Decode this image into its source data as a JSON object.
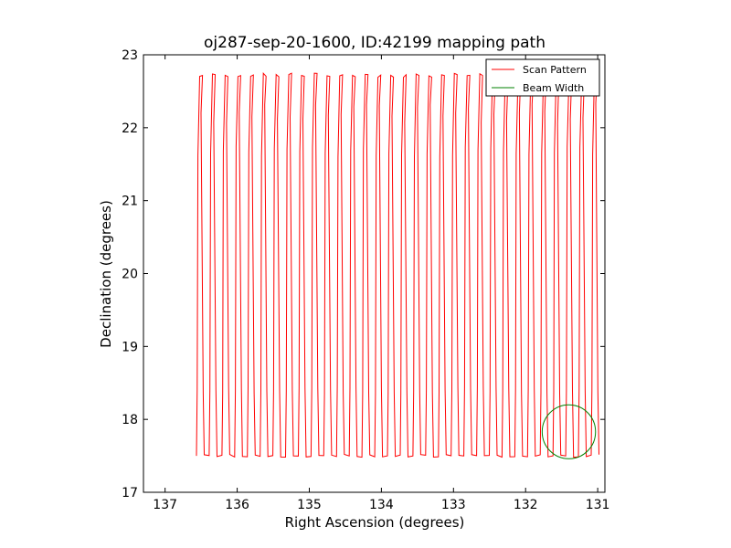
{
  "chart_data": {
    "type": "line",
    "title": "oj287-sep-20-1600, ID:42199 mapping path",
    "xlabel": "Right Ascension (degrees)",
    "ylabel": "Declination (degrees)",
    "xlim": [
      137.3,
      130.9
    ],
    "ylim": [
      17,
      23
    ],
    "x_inverted": true,
    "xticks": [
      137,
      136,
      135,
      134,
      133,
      132,
      131
    ],
    "xtick_labels": [
      "137",
      "136",
      "135",
      "134",
      "133",
      "132",
      "131"
    ],
    "yticks": [
      17,
      18,
      19,
      20,
      21,
      22,
      23
    ],
    "ytick_labels": [
      "17",
      "18",
      "19",
      "20",
      "21",
      "22",
      "23"
    ],
    "grid": false,
    "legend_position": "upper right",
    "series": [
      {
        "name": "Scan Pattern",
        "color": "#ff0000",
        "pattern": "back-and-forth vertical declination scans stepping west in right ascension",
        "ra_start": 136.55,
        "ra_step": 0.0883,
        "leg_count": 64,
        "dec_low": 17.5,
        "dec_high": 22.72
      },
      {
        "name": "Beam Width",
        "color": "#008000",
        "shape": "circle",
        "center": [
          131.4,
          17.83
        ],
        "radius": 0.37
      }
    ]
  }
}
